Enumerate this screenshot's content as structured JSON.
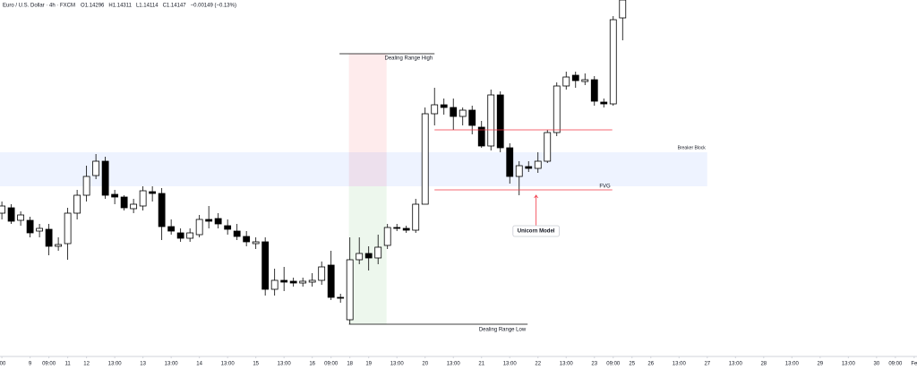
{
  "chart_data": {
    "type": "candlestick",
    "title": "Euro / U.S. Dollar · 4h · FXCM",
    "legend_items": [
      "O1.14296",
      "H1.14311",
      "L1.14114",
      "C1.14147",
      "−0.00149 (−0.13%)"
    ],
    "x": [
      0,
      1,
      2,
      3,
      4,
      5,
      6,
      7,
      8,
      9,
      10,
      11,
      12,
      13,
      14,
      15,
      16,
      17,
      18,
      19,
      20,
      21,
      22,
      23,
      24,
      25,
      26,
      27,
      28,
      29,
      30,
      31,
      32,
      33,
      34,
      35,
      36,
      37,
      38,
      39,
      40,
      41,
      42,
      43,
      44,
      45,
      46,
      47,
      48,
      49,
      50,
      51,
      52,
      53,
      54,
      55,
      56,
      57,
      58,
      59,
      60,
      61,
      62,
      63,
      64,
      65,
      66
    ],
    "open": [
      1.1481,
      1.1484,
      1.1477,
      1.1477,
      1.1471,
      1.1472,
      1.14625,
      1.1464,
      1.1481,
      1.1491,
      1.1502,
      1.151,
      1.14915,
      1.149,
      1.14835,
      1.1485,
      1.1493,
      1.1492,
      1.14735,
      1.147,
      1.1467,
      1.1469,
      1.14775,
      1.1478,
      1.1474,
      1.1471,
      1.1468,
      1.1464,
      1.1465,
      1.14385,
      1.14435,
      1.1443,
      1.1442,
      1.14425,
      1.14435,
      1.1452,
      1.1434,
      1.14215,
      1.1455,
      1.14585,
      1.1456,
      1.1463,
      1.1473,
      1.14725,
      1.14715,
      1.1486,
      1.15365,
      1.15415,
      1.154,
      1.1535,
      1.15385,
      1.1529,
      1.15185,
      1.1547,
      1.15175,
      1.15015,
      1.1507,
      1.1506,
      1.151,
      1.1526,
      1.1552,
      1.1558,
      1.15545,
      1.15555,
      1.1543,
      1.1542,
      1.159
    ],
    "high": [
      1.14875,
      1.1486,
      1.1482,
      1.1479,
      1.1475,
      1.1475,
      1.14675,
      1.1484,
      1.1494,
      1.15075,
      1.1514,
      1.15125,
      1.1494,
      1.1491,
      1.1489,
      1.1496,
      1.1496,
      1.1495,
      1.14775,
      1.14725,
      1.14725,
      1.148,
      1.1485,
      1.1481,
      1.14775,
      1.1475,
      1.1471,
      1.14675,
      1.14675,
      1.145,
      1.1451,
      1.1445,
      1.1445,
      1.14475,
      1.1454,
      1.146,
      1.1436,
      1.14675,
      1.14675,
      1.14625,
      1.1469,
      1.1475,
      1.1475,
      1.1474,
      1.1489,
      1.154,
      1.1551,
      1.1545,
      1.1545,
      1.154,
      1.1541,
      1.15325,
      1.155,
      1.1549,
      1.152,
      1.151,
      1.151,
      1.1515,
      1.15275,
      1.1554,
      1.156,
      1.156,
      1.1559,
      1.15575,
      1.1545,
      1.1591,
      1.16025
    ],
    "low": [
      1.14775,
      1.1475,
      1.1474,
      1.14675,
      1.14675,
      1.14575,
      1.146,
      1.1455,
      1.14775,
      1.14875,
      1.15,
      1.1489,
      1.1486,
      1.14825,
      1.1481,
      1.14825,
      1.14875,
      1.1466,
      1.1469,
      1.1465,
      1.1465,
      1.14675,
      1.14725,
      1.14725,
      1.1469,
      1.1466,
      1.14625,
      1.1461,
      1.1435,
      1.1435,
      1.14375,
      1.144,
      1.144,
      1.144,
      1.1441,
      1.14325,
      1.1431,
      1.1419,
      1.14525,
      1.1449,
      1.14525,
      1.1461,
      1.1471,
      1.147,
      1.147,
      1.1486,
      1.153,
      1.1536,
      1.15275,
      1.153,
      1.1525,
      1.15175,
      1.1516,
      1.1515,
      1.14975,
      1.1491,
      1.1504,
      1.15035,
      1.1509,
      1.1524,
      1.155,
      1.1551,
      1.15525,
      1.1541,
      1.154,
      1.1541,
      1.15775
    ],
    "close": [
      1.1485,
      1.14765,
      1.148,
      1.147,
      1.14725,
      1.14625,
      1.14635,
      1.1481,
      1.1491,
      1.15015,
      1.151,
      1.1491,
      1.149,
      1.1484,
      1.1486,
      1.14935,
      1.1492,
      1.14735,
      1.1471,
      1.1467,
      1.147,
      1.14775,
      1.14765,
      1.1475,
      1.1472,
      1.1468,
      1.1465,
      1.1465,
      1.14385,
      1.14435,
      1.14425,
      1.1442,
      1.1443,
      1.14435,
      1.1451,
      1.1434,
      1.14335,
      1.1455,
      1.14585,
      1.1456,
      1.1462,
      1.1473,
      1.14725,
      1.14715,
      1.1486,
      1.15365,
      1.15415,
      1.154,
      1.1535,
      1.15385,
      1.153,
      1.15185,
      1.1547,
      1.15175,
      1.15015,
      1.15075,
      1.1506,
      1.151,
      1.1526,
      1.1552,
      1.1557,
      1.1555,
      1.15555,
      1.15435,
      1.1542,
      1.1589,
      1.16
    ],
    "up_color": "#ffffff",
    "down_color": "#000000",
    "xlim": [
      -0.2,
      97.3
    ],
    "ylim": [
      1.14,
      1.16
    ],
    "xticks": [
      {
        "value": 0,
        "label": ":00"
      },
      {
        "value": 3,
        "label": "9"
      },
      {
        "value": 5,
        "label": "09:00"
      },
      {
        "value": 7,
        "label": "11"
      },
      {
        "value": 9,
        "label": "12"
      },
      {
        "value": 12,
        "label": "13:00"
      },
      {
        "value": 15,
        "label": "13"
      },
      {
        "value": 18,
        "label": "13:00"
      },
      {
        "value": 21,
        "label": "14"
      },
      {
        "value": 24,
        "label": "13:00"
      },
      {
        "value": 27,
        "label": "15"
      },
      {
        "value": 30,
        "label": "13:00"
      },
      {
        "value": 33,
        "label": "16"
      },
      {
        "value": 35,
        "label": "09:00"
      },
      {
        "value": 37,
        "label": "18"
      },
      {
        "value": 39,
        "label": "19"
      },
      {
        "value": 42,
        "label": "13:00"
      },
      {
        "value": 45,
        "label": "20"
      },
      {
        "value": 48,
        "label": "13:00"
      },
      {
        "value": 51,
        "label": "21"
      },
      {
        "value": 54,
        "label": "13:00"
      },
      {
        "value": 57,
        "label": "22"
      },
      {
        "value": 60,
        "label": "13:00"
      },
      {
        "value": 63,
        "label": "23"
      },
      {
        "value": 65,
        "label": "09:00"
      },
      {
        "value": 67,
        "label": "25"
      },
      {
        "value": 69,
        "label": "26"
      },
      {
        "value": 72,
        "label": "13:00"
      },
      {
        "value": 75,
        "label": "27"
      },
      {
        "value": 78,
        "label": "13:00"
      },
      {
        "value": 81,
        "label": "28"
      },
      {
        "value": 84,
        "label": "13:00"
      },
      {
        "value": 87,
        "label": "29"
      },
      {
        "value": 90,
        "label": "13:00"
      },
      {
        "value": 93,
        "label": "30"
      },
      {
        "value": 95,
        "label": "09:00"
      },
      {
        "value": 97,
        "label": "Fe"
      }
    ],
    "zones": [
      {
        "xlim": [
          36.9,
          40.9
        ],
        "ylim": [
          1.1496,
          1.157
        ],
        "color": "rgba(242,54,69,0.1)"
      },
      {
        "xlim": [
          36.9,
          40.9
        ],
        "ylim": [
          1.1419,
          1.1496
        ],
        "color": "rgba(76,175,80,0.1)"
      },
      {
        "label": "Breaker Block",
        "xlim": [
          -0.2,
          75
        ],
        "ylim": [
          1.1496,
          1.1515
        ],
        "color": "rgba(41,98,255,0.08)"
      }
    ],
    "lines": [
      {
        "label": "Dealing Range High",
        "y": 1.157,
        "xlim": [
          35.9,
          46.0
        ],
        "color": "#000000"
      },
      {
        "label": "Dealing Range Low",
        "y": 1.1419,
        "xlim": [
          36.9,
          55.9
        ],
        "color": "#000000"
      },
      {
        "y": 1.15275,
        "xlim": [
          46.0,
          64.9
        ],
        "color": "#f23645"
      },
      {
        "label": "FVG",
        "y": 1.1494,
        "xlim": [
          46.0,
          64.9
        ],
        "color": "#f23645"
      }
    ],
    "callout": {
      "label": "Unicorn Model",
      "x": 56.8,
      "y": 1.1471,
      "y_to": 1.1491,
      "color": "#f23645"
    }
  }
}
